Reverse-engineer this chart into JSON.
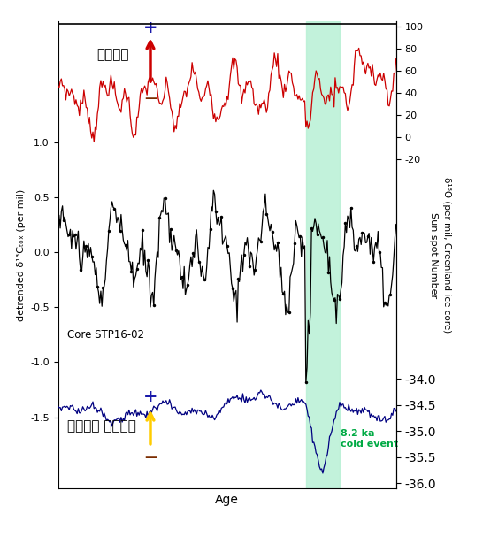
{
  "xlim": [
    6000,
    9000
  ],
  "xlabel": "Age",
  "left_ylabel": "detrended δ¹³Cₜₒₓ (per mil)",
  "right_ylabel1": "Sun spot Number",
  "right_ylabel2": "δ¹⁸O (per mil, Greenland ice core)",
  "black_ylim": [
    -1.5,
    1.0
  ],
  "red_ylim": [
    -20,
    100
  ],
  "blue_ylim": [
    -36.0,
    -34.0
  ],
  "green_band": [
    8200,
    8500
  ],
  "green_band_color": "#b8f0d5",
  "annotation_text": "8.2 ka\ncold event",
  "label_core": "Core STP16-02",
  "label_solar": "태양활동",
  "label_greenland": "그린란드 대기온도",
  "background_color": "#ffffff",
  "red_line_color": "#cc0000",
  "black_line_color": "#000000",
  "blue_line_color": "#000080",
  "fig_width": 5.46,
  "fig_height": 6.07,
  "dpi": 100
}
